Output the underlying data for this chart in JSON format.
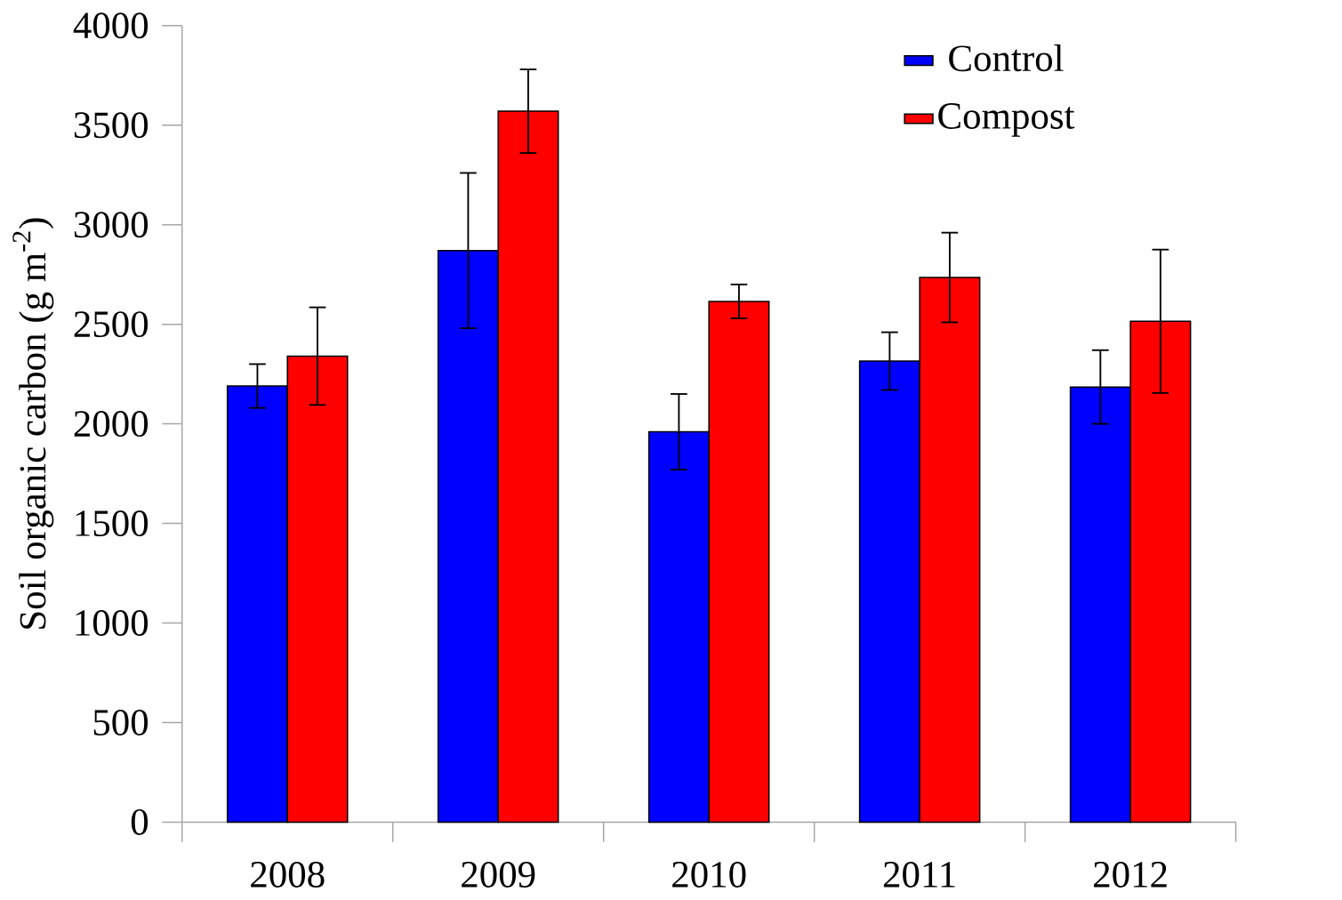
{
  "chart_data": {
    "type": "bar",
    "ylabel": "Soil organic carbon (g m$^{-2}$)",
    "categories": [
      "2008",
      "2009",
      "2010",
      "2011",
      "2012"
    ],
    "series": [
      {
        "name": "Control",
        "color": "#0000ff",
        "values": [
          2190,
          2870,
          1960,
          2315,
          2185
        ],
        "errors": [
          110,
          390,
          190,
          145,
          185
        ]
      },
      {
        "name": "Compost",
        "color": "#ff0000",
        "values": [
          2340,
          3570,
          2615,
          2735,
          2515
        ],
        "errors": [
          245,
          210,
          85,
          225,
          360
        ]
      }
    ],
    "ylim": [
      0,
      4000
    ],
    "yticks": [
      0,
      500,
      1000,
      1500,
      2000,
      2500,
      3000,
      3500,
      4000
    ],
    "legend": "top right"
  }
}
